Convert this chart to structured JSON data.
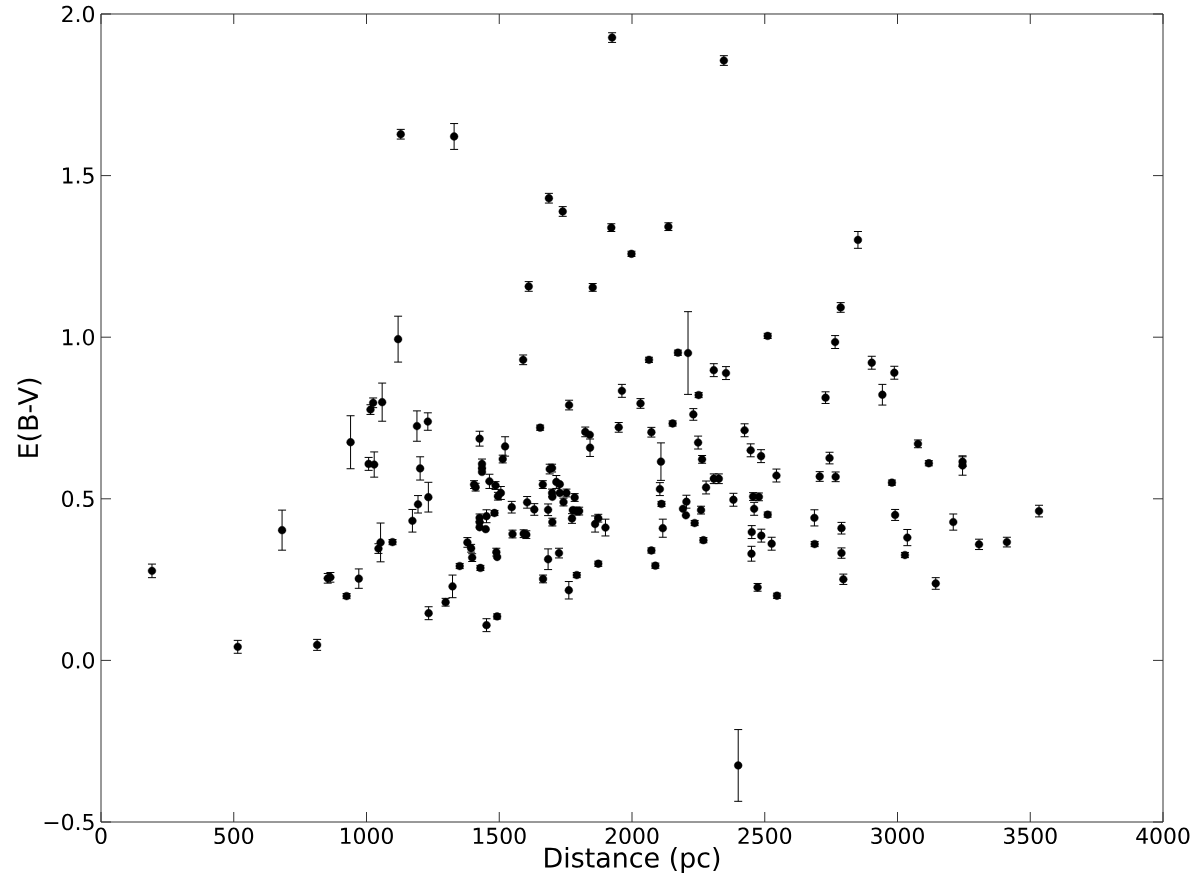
{
  "chart_data": {
    "type": "scatter",
    "xlabel": "Distance (pc)",
    "ylabel": "E(B-V)",
    "xlim": [
      0,
      4000
    ],
    "ylim": [
      -0.5,
      2.0
    ],
    "xticks": [
      0,
      500,
      1000,
      1500,
      2000,
      2500,
      3000,
      3500,
      4000
    ],
    "yticks": [
      {
        "value": -0.5,
        "label": "−0.5"
      },
      {
        "value": 0,
        "label": "0.0"
      },
      0.5,
      {
        "value": 1,
        "label": "1.0"
      },
      1.5,
      {
        "value": 2,
        "label": "2.0"
      }
    ],
    "marker": "circle",
    "color": "#000000",
    "x": [
      192,
      515,
      682,
      814,
      854,
      864,
      925,
      940,
      971,
      1008,
      1015,
      1025,
      1029,
      1045,
      1053,
      1059,
      1098,
      1119,
      1129,
      1173,
      1190,
      1194,
      1202,
      1231,
      1233,
      1234,
      1298,
      1324,
      1330,
      1351,
      1380,
      1394,
      1398,
      1405,
      1411,
      1426,
      1426,
      1426,
      1426,
      1429,
      1435,
      1435,
      1435,
      1449,
      1452,
      1452,
      1463,
      1482,
      1486,
      1489,
      1492,
      1492,
      1495,
      1506,
      1513,
      1522,
      1547,
      1550,
      1590,
      1592,
      1602,
      1605,
      1611,
      1632,
      1654,
      1664,
      1665,
      1684,
      1684,
      1687,
      1690,
      1699,
      1699,
      1700,
      1700,
      1715,
      1725,
      1728,
      1728,
      1739,
      1742,
      1753,
      1762,
      1763,
      1774,
      1777,
      1784,
      1791,
      1792,
      1801,
      1824,
      1841,
      1842,
      1852,
      1861,
      1873,
      1873,
      1900,
      1922,
      1925,
      1950,
      1962,
      1998,
      2032,
      2064,
      2073,
      2073,
      2088,
      2105,
      2109,
      2111,
      2116,
      2137,
      2153,
      2173,
      2192,
      2203,
      2205,
      2211,
      2231,
      2236,
      2249,
      2251,
      2260,
      2264,
      2269,
      2279,
      2308,
      2308,
      2327,
      2346,
      2354,
      2382,
      2400,
      2424,
      2447,
      2450,
      2451,
      2456,
      2460,
      2473,
      2478,
      2486,
      2487,
      2511,
      2511,
      2526,
      2544,
      2546,
      2687,
      2688,
      2707,
      2729,
      2744,
      2765,
      2767,
      2786,
      2789,
      2789,
      2796,
      2851,
      2903,
      2943,
      2979,
      2988,
      2991,
      3028,
      3037,
      3077,
      3118,
      3144,
      3210,
      3245,
      3245,
      3307,
      3412,
      3533
    ],
    "values": [
      0.277,
      0.042,
      0.403,
      0.048,
      0.254,
      0.257,
      0.199,
      0.675,
      0.253,
      0.608,
      0.776,
      0.797,
      0.606,
      0.346,
      0.365,
      0.799,
      0.366,
      0.994,
      1.628,
      0.432,
      0.725,
      0.483,
      0.594,
      0.739,
      0.505,
      0.146,
      0.18,
      0.229,
      1.621,
      0.292,
      0.365,
      0.347,
      0.318,
      0.544,
      0.536,
      0.686,
      0.441,
      0.428,
      0.412,
      0.286,
      0.608,
      0.595,
      0.583,
      0.406,
      0.446,
      0.109,
      0.554,
      0.456,
      0.541,
      0.335,
      0.32,
      0.136,
      0.508,
      0.518,
      0.623,
      0.662,
      0.474,
      0.391,
      0.93,
      0.392,
      0.389,
      0.489,
      1.157,
      0.467,
      0.72,
      0.544,
      0.252,
      0.466,
      0.313,
      1.43,
      0.592,
      0.595,
      0.518,
      0.506,
      0.428,
      0.552,
      0.332,
      0.545,
      0.518,
      1.389,
      0.49,
      0.518,
      0.217,
      0.79,
      0.439,
      0.465,
      0.504,
      0.462,
      0.264,
      0.462,
      0.707,
      0.698,
      0.658,
      1.154,
      0.422,
      0.44,
      0.299,
      0.411,
      1.339,
      1.927,
      0.721,
      0.834,
      1.258,
      0.795,
      0.93,
      0.706,
      0.34,
      0.293,
      0.53,
      0.615,
      0.484,
      0.409,
      1.342,
      0.733,
      0.952,
      0.469,
      0.449,
      0.491,
      0.951,
      0.761,
      0.425,
      0.674,
      0.821,
      0.465,
      0.622,
      0.372,
      0.535,
      0.898,
      0.562,
      0.562,
      1.856,
      0.889,
      0.497,
      -0.325,
      0.712,
      0.65,
      0.33,
      0.397,
      0.507,
      0.469,
      0.226,
      0.506,
      0.632,
      0.386,
      1.004,
      0.451,
      0.361,
      0.572,
      0.2,
      0.441,
      0.36,
      0.569,
      0.813,
      0.626,
      0.985,
      0.568,
      1.092,
      0.409,
      0.332,
      0.251,
      1.301,
      0.921,
      0.822,
      0.55,
      0.89,
      0.45,
      0.326,
      0.38,
      0.67,
      0.61,
      0.238,
      0.428,
      0.615,
      0.603,
      0.359,
      0.366,
      0.462
    ],
    "errors": [
      0.021,
      0.02,
      0.062,
      0.017,
      0.015,
      0.015,
      0.008,
      0.082,
      0.03,
      0.02,
      0.015,
      0.015,
      0.039,
      0.015,
      0.06,
      0.059,
      0.008,
      0.071,
      0.015,
      0.035,
      0.047,
      0.027,
      0.036,
      0.027,
      0.046,
      0.02,
      0.012,
      0.035,
      0.04,
      0.008,
      0.015,
      0.012,
      0.012,
      0.012,
      0.012,
      0.023,
      0.012,
      null,
      null,
      0.008,
      0.015,
      null,
      null,
      null,
      0.02,
      0.02,
      0.022,
      0.008,
      0.012,
      0.012,
      null,
      0.008,
      0.012,
      0.02,
      0.012,
      0.03,
      0.018,
      0.012,
      0.015,
      0.012,
      0.012,
      0.018,
      0.015,
      0.018,
      0.008,
      0.012,
      0.012,
      0.018,
      0.032,
      0.015,
      0.015,
      0.012,
      0.012,
      null,
      0.012,
      0.02,
      0.015,
      null,
      null,
      0.015,
      0.012,
      0.012,
      0.027,
      0.015,
      0.015,
      null,
      0.012,
      0.012,
      0.008,
      0.012,
      0.015,
      null,
      0.027,
      0.012,
      0.025,
      0.012,
      0.008,
      0.026,
      0.012,
      0.015,
      0.015,
      0.02,
      0.008,
      0.015,
      0.008,
      0.015,
      0.008,
      0.008,
      0.02,
      0.058,
      0.008,
      0.028,
      0.012,
      0.008,
      0.008,
      null,
      null,
      0.02,
      0.128,
      0.018,
      0.008,
      0.02,
      0.008,
      0.012,
      0.012,
      0.008,
      0.02,
      0.02,
      0.015,
      0.015,
      0.015,
      0.02,
      0.02,
      0.111,
      0.02,
      0.02,
      0.023,
      0.02,
      0.012,
      0.02,
      0.012,
      0.012,
      0.02,
      0.02,
      0.008,
      0.008,
      0.02,
      0.02,
      0.008,
      0.025,
      0.008,
      0.015,
      0.018,
      0.018,
      0.02,
      0.015,
      0.015,
      0.018,
      0.016,
      0.016,
      0.026,
      0.02,
      0.032,
      0.008,
      0.02,
      0.017,
      0.008,
      0.025,
      0.012,
      0.008,
      0.018,
      0.025,
      0.015,
      0.03,
      0.016,
      0.015,
      0.018
    ]
  }
}
